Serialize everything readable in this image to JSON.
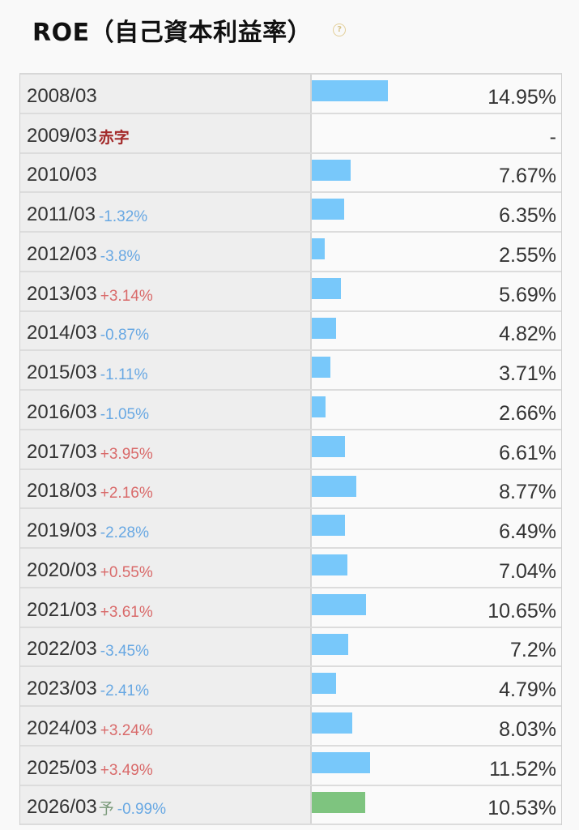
{
  "title": "ROE（自己資本利益率）",
  "help_icon": "question-icon",
  "colors": {
    "bar": "#78c8fa",
    "forecast_bar": "#7ec47f",
    "positive": "#d96a6a",
    "negative": "#68a8e3",
    "deficit": "#a32a2a"
  },
  "chart_data": {
    "type": "bar",
    "orientation": "horizontal",
    "unit": "%",
    "rows": [
      {
        "period": "2008/03",
        "tag": "",
        "change": "",
        "value": 14.95,
        "display": "14.95%"
      },
      {
        "period": "2009/03",
        "tag": "赤字",
        "change": "",
        "value": null,
        "display": "-"
      },
      {
        "period": "2010/03",
        "tag": "",
        "change": "",
        "value": 7.67,
        "display": "7.67%"
      },
      {
        "period": "2011/03",
        "tag": "",
        "change": "-1.32%",
        "value": 6.35,
        "display": "6.35%"
      },
      {
        "period": "2012/03",
        "tag": "",
        "change": "-3.8%",
        "value": 2.55,
        "display": "2.55%"
      },
      {
        "period": "2013/03",
        "tag": "",
        "change": "+3.14%",
        "value": 5.69,
        "display": "5.69%"
      },
      {
        "period": "2014/03",
        "tag": "",
        "change": "-0.87%",
        "value": 4.82,
        "display": "4.82%"
      },
      {
        "period": "2015/03",
        "tag": "",
        "change": "-1.11%",
        "value": 3.71,
        "display": "3.71%"
      },
      {
        "period": "2016/03",
        "tag": "",
        "change": "-1.05%",
        "value": 2.66,
        "display": "2.66%"
      },
      {
        "period": "2017/03",
        "tag": "",
        "change": "+3.95%",
        "value": 6.61,
        "display": "6.61%"
      },
      {
        "period": "2018/03",
        "tag": "",
        "change": "+2.16%",
        "value": 8.77,
        "display": "8.77%"
      },
      {
        "period": "2019/03",
        "tag": "",
        "change": "-2.28%",
        "value": 6.49,
        "display": "6.49%"
      },
      {
        "period": "2020/03",
        "tag": "",
        "change": "+0.55%",
        "value": 7.04,
        "display": "7.04%"
      },
      {
        "period": "2021/03",
        "tag": "",
        "change": "+3.61%",
        "value": 10.65,
        "display": "10.65%"
      },
      {
        "period": "2022/03",
        "tag": "",
        "change": "-3.45%",
        "value": 7.2,
        "display": "7.2%"
      },
      {
        "period": "2023/03",
        "tag": "",
        "change": "-2.41%",
        "value": 4.79,
        "display": "4.79%"
      },
      {
        "period": "2024/03",
        "tag": "",
        "change": "+3.24%",
        "value": 8.03,
        "display": "8.03%"
      },
      {
        "period": "2025/03",
        "tag": "",
        "change": "+3.49%",
        "value": 11.52,
        "display": "11.52%"
      },
      {
        "period": "2026/03",
        "tag": "予",
        "change": "-0.99%",
        "value": 10.53,
        "display": "10.53%",
        "forecast": true
      }
    ]
  }
}
